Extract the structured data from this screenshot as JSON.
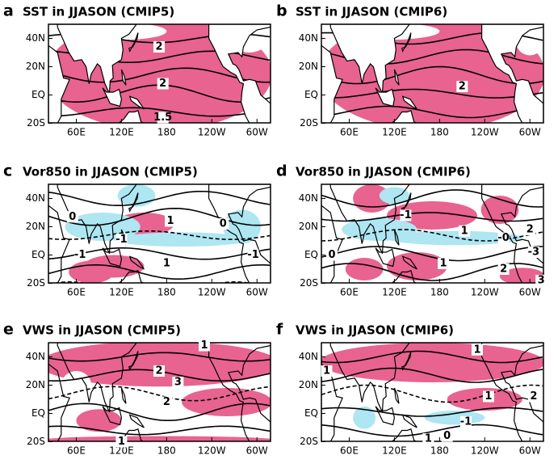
{
  "xticks": [
    "60E",
    "120E",
    "180",
    "120W",
    "60W"
  ],
  "yticks": [
    "40N",
    "20N",
    "EQ",
    "20S"
  ],
  "panels": [
    {
      "letter": "a",
      "title": "SST in JJASON (CMIP5)",
      "contour_labels": [
        "2",
        "2",
        "1.5"
      ]
    },
    {
      "letter": "b",
      "title": "SST in JJASON (CMIP6)",
      "contour_labels": [
        "2"
      ]
    },
    {
      "letter": "c",
      "title": "Vor850 in JJASON (CMIP5)",
      "contour_labels": [
        "0",
        "1",
        "-1",
        "0",
        "-1",
        "1",
        "-1"
      ]
    },
    {
      "letter": "d",
      "title": "Vor850 in JJASON (CMIP6)",
      "contour_labels": [
        "-1",
        "1",
        "-0",
        "2",
        "-3",
        "1",
        "2",
        "3",
        "0"
      ]
    },
    {
      "letter": "e",
      "title": "VWS in JJASON (CMIP5)",
      "contour_labels": [
        "1",
        "2",
        "3",
        "2",
        "1"
      ]
    },
    {
      "letter": "f",
      "title": "VWS in JJASON (CMIP6)",
      "contour_labels": [
        "1",
        "1",
        "1",
        "2",
        "-1",
        "1",
        "0"
      ]
    }
  ]
}
